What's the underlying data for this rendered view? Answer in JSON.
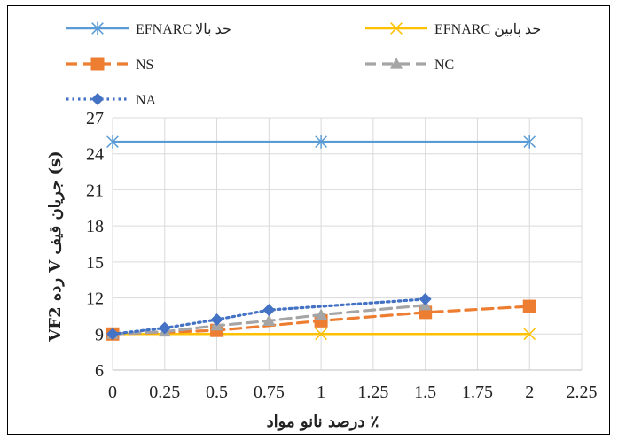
{
  "chart_data": {
    "type": "line",
    "xlabel": "درصد نانو مواد ٪",
    "ylabel": "VF2 رده V جریان قیف (s)",
    "xlim": [
      0,
      2.25
    ],
    "ylim": [
      6,
      27
    ],
    "x_ticks": [
      "0",
      "0.25",
      "0.5",
      "0.75",
      "1",
      "1.25",
      "1.5",
      "1.75",
      "2",
      "2.25"
    ],
    "y_ticks": [
      "6",
      "9",
      "12",
      "15",
      "18",
      "21",
      "24",
      "27"
    ],
    "grid": true,
    "legend_position": "top",
    "series": [
      {
        "name": "EFNARC حد بالا",
        "color": "#5b9bd5",
        "marker": "star",
        "dash": "solid",
        "x": [
          0,
          1,
          2
        ],
        "y": [
          25,
          25,
          25
        ]
      },
      {
        "name": "EFNARC حد پایین",
        "color": "#ffc000",
        "marker": "x",
        "dash": "solid",
        "x": [
          0,
          1,
          2
        ],
        "y": [
          9,
          9,
          9
        ]
      },
      {
        "name": "NS",
        "color": "#ed7d31",
        "marker": "square",
        "dash": "dash",
        "x": [
          0,
          0.5,
          1,
          1.5,
          2
        ],
        "y": [
          9.0,
          9.3,
          10.1,
          10.8,
          11.3
        ]
      },
      {
        "name": "NC",
        "color": "#a5a5a5",
        "marker": "triangle",
        "dash": "dash",
        "x": [
          0,
          0.25,
          0.5,
          0.75,
          1,
          1.5
        ],
        "y": [
          9.0,
          9.2,
          9.7,
          10.1,
          10.6,
          11.4
        ]
      },
      {
        "name": "NA",
        "color": "#4472c4",
        "marker": "diamond",
        "dash": "dot",
        "x": [
          0,
          0.25,
          0.5,
          0.75,
          1.5
        ],
        "y": [
          9.0,
          9.5,
          10.2,
          11.0,
          11.9
        ]
      }
    ]
  }
}
